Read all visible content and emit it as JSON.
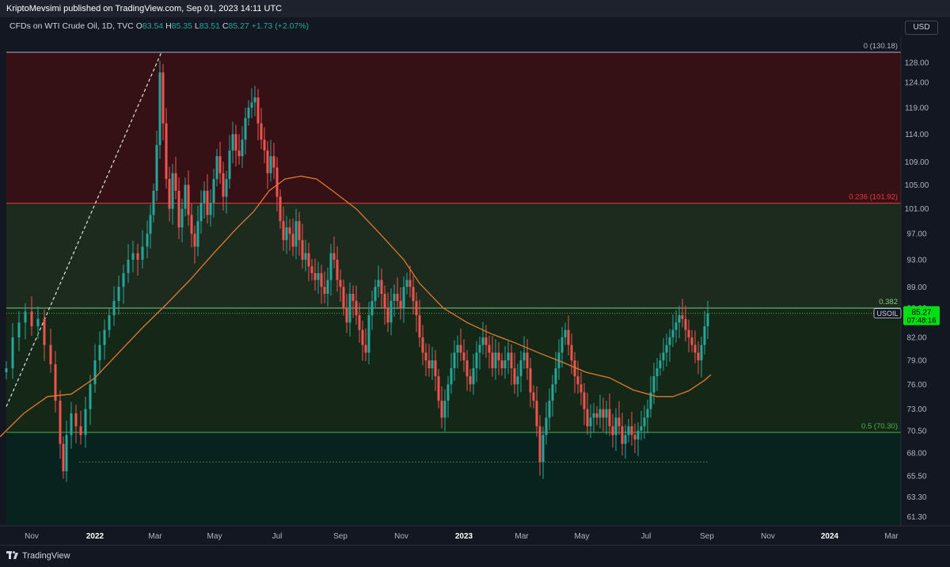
{
  "header": {
    "published": "KriptoMevsimi published on TradingView.com, Sep 01, 2023 14:11 UTC"
  },
  "legend": {
    "symbol": "CFDs on WTI Crude Oil, 1D, TVC",
    "open_label": "O",
    "open": "83.54",
    "high_label": "H",
    "high": "85.35",
    "low_label": "L",
    "low": "83.51",
    "close_label": "C",
    "close": "85.27",
    "change": "+1.73 (+2.07%)"
  },
  "currency": "USD",
  "price_tag": {
    "symbol": "USOIL",
    "price": "85.27",
    "countdown": "07:48:16"
  },
  "footer": {
    "brand": "TradingView"
  },
  "chart_data": {
    "type": "candlestick",
    "y_axis": {
      "ticks": [
        "128.00",
        "124.00",
        "119.00",
        "114.00",
        "109.00",
        "105.00",
        "101.00",
        "97.00",
        "93.00",
        "89.00",
        "86.00",
        "82.00",
        "79.00",
        "76.00",
        "73.00",
        "70.50",
        "68.00",
        "65.50",
        "63.30",
        "61.30"
      ],
      "range": [
        60,
        131
      ],
      "scale": "log"
    },
    "x_axis": {
      "ticks": [
        "Nov",
        "2022",
        "Mar",
        "May",
        "Jul",
        "Sep",
        "Nov",
        "2023",
        "Mar",
        "May",
        "Jul",
        "Sep",
        "Nov",
        "2024",
        "Mar"
      ]
    },
    "fib_levels": [
      {
        "label": "0 (130.18)",
        "value": 130.18,
        "color": "#b2b5be"
      },
      {
        "label": "0.236 (101.92)",
        "value": 101.92,
        "color": "#f23645"
      },
      {
        "label": "0.382",
        "value": 86.0,
        "color": "#81c784"
      },
      {
        "label": "0.5 (70.30)",
        "value": 70.3,
        "color": "#4caf50"
      }
    ],
    "zones": [
      {
        "from": 130.18,
        "to": 101.92,
        "color": "#351014"
      },
      {
        "from": 101.92,
        "to": 86.0,
        "color": "#1d2a1e"
      },
      {
        "from": 86.0,
        "to": 70.3,
        "color": "#152818"
      },
      {
        "from": 70.3,
        "to": 60,
        "color": "#08221d"
      }
    ],
    "moving_average": {
      "color": "#e07a2f",
      "points": [
        [
          0,
          69.8
        ],
        [
          30,
          72.5
        ],
        [
          60,
          74.5
        ],
        [
          90,
          74.8
        ],
        [
          120,
          76.8
        ],
        [
          150,
          80
        ],
        [
          180,
          83.3
        ],
        [
          210,
          86.5
        ],
        [
          240,
          90
        ],
        [
          270,
          94
        ],
        [
          300,
          98
        ],
        [
          320,
          100.5
        ],
        [
          340,
          104
        ],
        [
          360,
          106
        ],
        [
          380,
          106.5
        ],
        [
          400,
          106
        ],
        [
          420,
          104
        ],
        [
          450,
          101
        ],
        [
          480,
          97
        ],
        [
          510,
          93
        ],
        [
          530,
          89.5
        ],
        [
          560,
          86
        ],
        [
          590,
          84
        ],
        [
          620,
          82.5
        ],
        [
          650,
          81.3
        ],
        [
          680,
          80
        ],
        [
          710,
          78.8
        ],
        [
          740,
          77.5
        ],
        [
          770,
          76.8
        ],
        [
          800,
          75.3
        ],
        [
          830,
          74.5
        ],
        [
          850,
          74.5
        ],
        [
          870,
          75.2
        ],
        [
          890,
          76.5
        ],
        [
          898,
          77.2
        ]
      ]
    },
    "closes": [
      [
        8,
        78
      ],
      [
        16,
        82
      ],
      [
        24,
        84
      ],
      [
        32,
        85.5
      ],
      [
        40,
        83.5
      ],
      [
        48,
        84.5
      ],
      [
        56,
        81
      ],
      [
        64,
        78.5
      ],
      [
        70,
        74
      ],
      [
        76,
        69
      ],
      [
        80,
        66
      ],
      [
        84,
        70
      ],
      [
        90,
        72.5
      ],
      [
        96,
        71
      ],
      [
        102,
        70
      ],
      [
        108,
        73
      ],
      [
        114,
        76
      ],
      [
        120,
        79
      ],
      [
        126,
        81
      ],
      [
        132,
        83
      ],
      [
        138,
        85
      ],
      [
        144,
        87
      ],
      [
        150,
        89
      ],
      [
        156,
        91
      ],
      [
        162,
        93
      ],
      [
        168,
        94
      ],
      [
        174,
        93
      ],
      [
        180,
        95
      ],
      [
        186,
        97
      ],
      [
        190,
        100
      ],
      [
        194,
        104
      ],
      [
        198,
        112
      ],
      [
        202,
        126
      ],
      [
        206,
        116
      ],
      [
        210,
        106
      ],
      [
        214,
        101
      ],
      [
        218,
        107
      ],
      [
        222,
        104
      ],
      [
        226,
        98
      ],
      [
        230,
        101
      ],
      [
        234,
        105
      ],
      [
        238,
        100
      ],
      [
        242,
        97
      ],
      [
        246,
        95
      ],
      [
        250,
        99
      ],
      [
        254,
        102
      ],
      [
        258,
        104
      ],
      [
        262,
        100
      ],
      [
        266,
        102
      ],
      [
        270,
        106
      ],
      [
        274,
        110
      ],
      [
        278,
        107
      ],
      [
        282,
        103
      ],
      [
        286,
        106
      ],
      [
        290,
        111
      ],
      [
        294,
        114
      ],
      [
        298,
        111
      ],
      [
        302,
        110
      ],
      [
        306,
        113
      ],
      [
        310,
        117
      ],
      [
        314,
        119
      ],
      [
        318,
        120
      ],
      [
        322,
        121
      ],
      [
        326,
        116
      ],
      [
        330,
        113
      ],
      [
        334,
        111
      ],
      [
        338,
        107
      ],
      [
        342,
        110
      ],
      [
        346,
        108
      ],
      [
        350,
        103
      ],
      [
        354,
        99
      ],
      [
        358,
        96
      ],
      [
        362,
        98
      ],
      [
        366,
        97
      ],
      [
        370,
        95
      ],
      [
        374,
        99
      ],
      [
        378,
        96
      ],
      [
        382,
        93
      ],
      [
        386,
        94
      ],
      [
        390,
        92
      ],
      [
        394,
        91
      ],
      [
        398,
        90
      ],
      [
        402,
        91
      ],
      [
        406,
        89
      ],
      [
        410,
        88
      ],
      [
        414,
        90
      ],
      [
        418,
        94
      ],
      [
        422,
        93
      ],
      [
        426,
        90
      ],
      [
        430,
        89
      ],
      [
        434,
        86
      ],
      [
        438,
        84
      ],
      [
        442,
        88
      ],
      [
        446,
        87
      ],
      [
        450,
        85
      ],
      [
        454,
        83
      ],
      [
        458,
        81
      ],
      [
        462,
        80
      ],
      [
        466,
        85
      ],
      [
        470,
        87
      ],
      [
        474,
        89
      ],
      [
        478,
        90
      ],
      [
        482,
        88
      ],
      [
        486,
        86
      ],
      [
        490,
        84
      ],
      [
        494,
        87
      ],
      [
        498,
        88
      ],
      [
        502,
        87
      ],
      [
        506,
        86
      ],
      [
        510,
        89
      ],
      [
        514,
        90
      ],
      [
        518,
        89
      ],
      [
        522,
        87
      ],
      [
        526,
        85
      ],
      [
        530,
        82
      ],
      [
        534,
        80
      ],
      [
        538,
        79
      ],
      [
        542,
        78
      ],
      [
        546,
        79
      ],
      [
        550,
        77
      ],
      [
        554,
        74
      ],
      [
        558,
        72
      ],
      [
        562,
        74
      ],
      [
        566,
        76
      ],
      [
        570,
        78
      ],
      [
        574,
        80
      ],
      [
        578,
        81
      ],
      [
        582,
        80
      ],
      [
        586,
        79
      ],
      [
        590,
        77
      ],
      [
        594,
        76
      ],
      [
        598,
        78
      ],
      [
        602,
        80
      ],
      [
        606,
        81
      ],
      [
        610,
        82
      ],
      [
        614,
        81
      ],
      [
        618,
        80
      ],
      [
        622,
        78
      ],
      [
        626,
        80
      ],
      [
        630,
        79
      ],
      [
        634,
        78
      ],
      [
        638,
        79
      ],
      [
        642,
        80
      ],
      [
        646,
        78
      ],
      [
        650,
        76
      ],
      [
        654,
        77
      ],
      [
        658,
        79
      ],
      [
        662,
        80
      ],
      [
        666,
        78
      ],
      [
        670,
        75
      ],
      [
        674,
        74
      ],
      [
        678,
        71
      ],
      [
        682,
        67
      ],
      [
        686,
        70
      ],
      [
        690,
        72
      ],
      [
        694,
        74
      ],
      [
        698,
        76
      ],
      [
        702,
        78
      ],
      [
        706,
        80
      ],
      [
        710,
        82
      ],
      [
        714,
        83
      ],
      [
        718,
        81
      ],
      [
        722,
        79
      ],
      [
        726,
        77
      ],
      [
        730,
        76
      ],
      [
        734,
        75
      ],
      [
        738,
        73
      ],
      [
        742,
        71
      ],
      [
        746,
        72
      ],
      [
        750,
        72.5
      ],
      [
        754,
        72
      ],
      [
        758,
        73
      ],
      [
        762,
        72
      ],
      [
        766,
        73
      ],
      [
        770,
        71
      ],
      [
        774,
        70
      ],
      [
        778,
        72
      ],
      [
        782,
        71
      ],
      [
        786,
        69
      ],
      [
        790,
        70
      ],
      [
        794,
        71
      ],
      [
        798,
        70
      ],
      [
        802,
        69.5
      ],
      [
        806,
        70.5
      ],
      [
        810,
        71
      ],
      [
        814,
        72
      ],
      [
        818,
        73
      ],
      [
        822,
        75
      ],
      [
        826,
        77
      ],
      [
        830,
        78
      ],
      [
        834,
        79
      ],
      [
        838,
        80
      ],
      [
        842,
        81
      ],
      [
        846,
        82
      ],
      [
        850,
        83
      ],
      [
        854,
        84
      ],
      [
        858,
        85
      ],
      [
        862,
        84.5
      ],
      [
        866,
        83
      ],
      [
        870,
        82
      ],
      [
        874,
        81
      ],
      [
        878,
        80
      ],
      [
        882,
        79
      ],
      [
        886,
        81
      ],
      [
        890,
        83.5
      ],
      [
        894,
        85.27
      ]
    ]
  }
}
